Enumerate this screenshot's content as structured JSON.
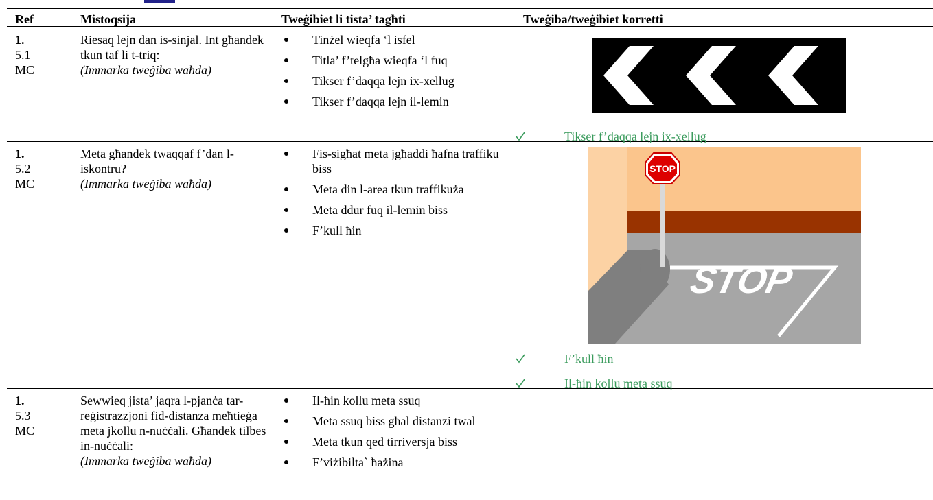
{
  "table": {
    "header": [
      "Ref",
      "Mistoqsija",
      "Tweġibiet li tista’ tagħti",
      "Tweġiba/tweġibiet korretti"
    ],
    "rows": [
      {
        "ref": [
          "1.",
          "5.1",
          "MC"
        ],
        "question": "Riesaq lejn dan is-sinjal. Int għandek tkun taf li t-triq:",
        "instruction": "(Immarka tweġiba waħda)",
        "options": [
          "Tinżel wieqfa ‘l isfel",
          "Titla’ f’telgħa wieqfa ‘l fuq",
          "Tikser f’daqqa lejn ix-xellug",
          "Tikser f’daqqa lejn il-lemin"
        ],
        "correct": "Tikser f’daqqa lejn ix-xellug"
      },
      {
        "ref": [
          "1.",
          "5.2",
          "MC"
        ],
        "question": "Meta għandek twaqqaf f’dan l-iskontru?",
        "instruction": "(Immarka tweġiba waħda)",
        "options": [
          "Fis-sigħat meta jgħaddi ħafna traffiku biss",
          "Meta din l-area tkun traffikuża",
          "Meta ddur fuq il-lemin biss",
          "F’kull ħin"
        ],
        "correct": "F’kull ħin"
      },
      {
        "ref": [
          "1.",
          "5.3",
          "MC"
        ],
        "question": "Sewwieq jista’ jaqra l-pjanċa tar-reġistrazzjoni fid-distanza meħtieġa meta jkollu n-nuċċali. Għandek tilbes in-nuċċali:",
        "instruction": "(Immarka tweġiba waħda)",
        "options": [
          "Il-ħin kollu meta ssuq",
          "Meta ssuq biss għal distanzi twal",
          "Meta tkun qed tirriversja biss",
          "F’viżibilta` ħażina"
        ],
        "correct": "Il-ħin kollu meta ssuq"
      }
    ]
  },
  "images": {
    "stop_sign_text": "STOP",
    "road_marking_text": "STOP"
  }
}
